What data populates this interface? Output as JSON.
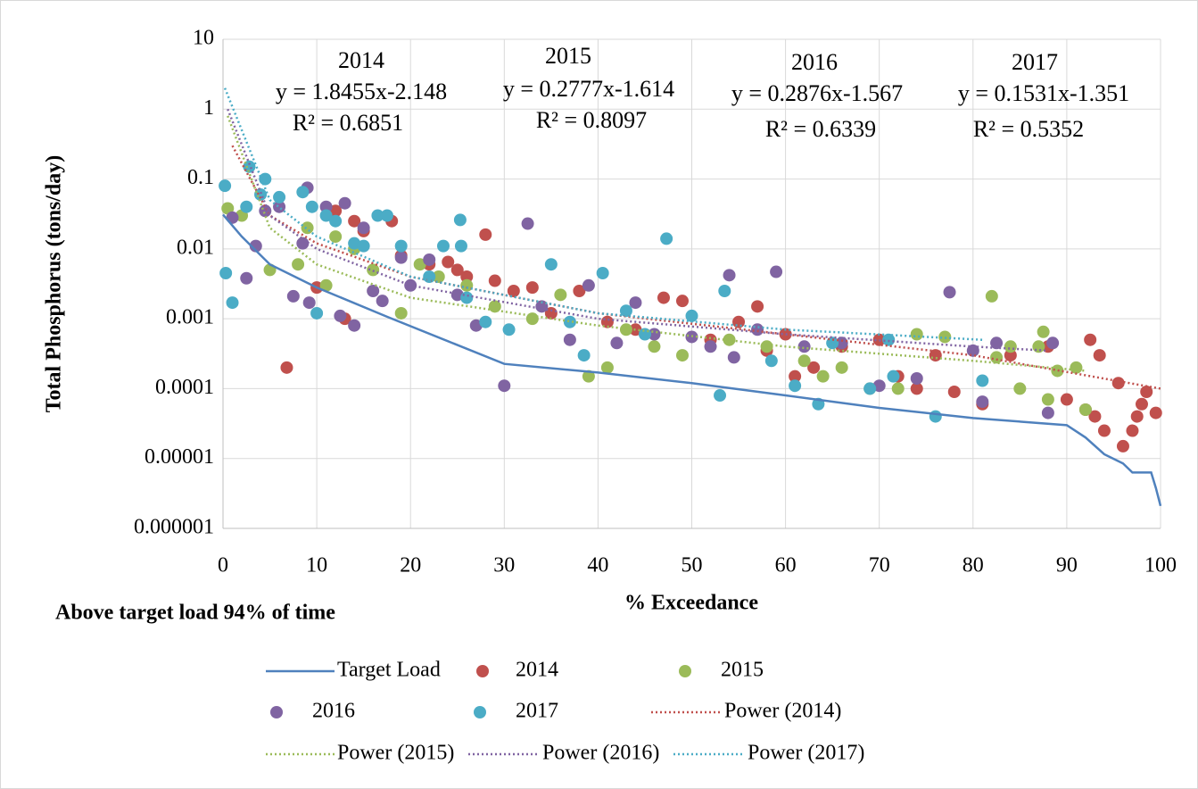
{
  "chart_data": {
    "type": "scatter",
    "log_y": true,
    "grid": true,
    "xlabel": "% Exceedance",
    "ylabel": "Total Phosphorus (tons/day)",
    "xlim": [
      0,
      100
    ],
    "xticks": [
      0,
      10,
      20,
      30,
      40,
      50,
      60,
      70,
      80,
      90,
      100
    ],
    "ylim": [
      1e-06,
      10
    ],
    "yticks": [
      1e-06,
      1e-05,
      0.0001,
      0.001,
      0.01,
      0.1,
      1,
      10
    ],
    "annotations": [
      "2014",
      "y = 1.8455x-2.148",
      "R² = 0.6851",
      "2015",
      "y = 0.2777x-1.614",
      "R² = 0.8097",
      "2016",
      "y = 0.2876x-1.567",
      "R² = 0.6339",
      "2017",
      "y = 0.1531x-1.351",
      "R² = 0.5352",
      "Above target load 94% of time"
    ],
    "series": [
      {
        "name": "Target Load",
        "type": "line",
        "color": "#4f81bd",
        "x": [
          0,
          2,
          5,
          10,
          17.5,
          30,
          40,
          50,
          60,
          70,
          80,
          90,
          92,
          94,
          96,
          97,
          99,
          99.5,
          100
        ],
        "values": [
          0.031,
          0.015,
          0.006,
          0.0028,
          0.00107,
          0.000226,
          0.00017,
          0.00012,
          8e-05,
          5.3e-05,
          3.8e-05,
          3e-05,
          2e-05,
          1.15e-05,
          8.5e-06,
          6.3e-06,
          6.3e-06,
          3.8e-06,
          2.1e-06
        ]
      },
      {
        "name": "2014",
        "type": "scatter",
        "color": "#c0504d",
        "x": [
          6.8,
          10,
          12,
          13,
          14,
          15,
          18,
          19,
          22,
          24,
          25,
          26,
          28,
          29,
          31,
          33,
          35,
          38,
          41,
          44,
          47,
          49,
          52,
          55,
          57,
          58,
          60,
          61,
          63,
          66,
          70,
          72,
          74,
          76,
          78,
          81,
          84,
          88,
          90,
          92,
          92.5,
          93,
          93.5,
          94,
          95.5,
          96,
          97,
          97.5,
          98,
          98.5,
          99.5
        ],
        "values": [
          0.0002,
          0.0028,
          0.035,
          0.001,
          0.025,
          0.018,
          0.025,
          0.008,
          0.006,
          0.0065,
          0.005,
          0.004,
          0.016,
          0.0035,
          0.0025,
          0.0028,
          0.0012,
          0.0025,
          0.0009,
          0.0007,
          0.002,
          0.0018,
          0.0005,
          0.0009,
          0.0015,
          0.00035,
          0.0006,
          0.00015,
          0.0002,
          0.0004,
          0.0005,
          0.00015,
          0.0001,
          0.0003,
          9e-05,
          6e-05,
          0.0003,
          0.0004,
          7e-05,
          5e-05,
          0.0005,
          4e-05,
          0.0003,
          2.5e-05,
          0.00012,
          1.5e-05,
          2.5e-05,
          4e-05,
          6e-05,
          9e-05,
          4.5e-05
        ]
      },
      {
        "name": "2015",
        "type": "scatter",
        "color": "#9bbb59",
        "x": [
          0.5,
          2,
          5,
          8,
          9,
          11,
          12,
          14,
          16,
          19,
          21,
          23,
          26,
          29,
          33,
          36,
          39,
          41,
          43,
          46,
          49,
          54,
          58,
          62,
          64,
          66,
          69,
          72,
          74,
          77,
          82,
          82.5,
          84,
          85,
          87,
          87.5,
          88,
          89,
          91,
          92
        ],
        "values": [
          0.038,
          0.03,
          0.005,
          0.006,
          0.02,
          0.003,
          0.015,
          0.01,
          0.005,
          0.0012,
          0.006,
          0.004,
          0.003,
          0.0015,
          0.001,
          0.0022,
          0.00015,
          0.0002,
          0.0007,
          0.0004,
          0.0003,
          0.0005,
          0.0004,
          0.00025,
          0.00015,
          0.0002,
          0.0001,
          0.0001,
          0.0006,
          0.00055,
          0.0021,
          0.00028,
          0.0004,
          0.0001,
          0.0004,
          0.00065,
          7e-05,
          0.00018,
          0.0002,
          5e-05
        ]
      },
      {
        "name": "2016",
        "type": "scatter",
        "color": "#8064a2",
        "x": [
          1,
          2.5,
          3.5,
          4.5,
          6,
          7.5,
          8.5,
          9,
          9.2,
          11,
          12.5,
          13,
          14,
          15,
          16,
          17,
          19,
          20,
          22,
          25,
          27,
          30,
          32.5,
          34,
          37,
          39,
          42,
          44,
          46,
          50,
          52,
          54,
          54.5,
          57,
          59,
          62,
          66,
          70,
          74,
          77.5,
          80,
          81,
          82.5,
          88,
          88.5
        ],
        "values": [
          0.028,
          0.0038,
          0.011,
          0.035,
          0.04,
          0.0021,
          0.012,
          0.075,
          0.0017,
          0.04,
          0.0011,
          0.045,
          0.0008,
          0.02,
          0.0025,
          0.0018,
          0.0075,
          0.003,
          0.007,
          0.0022,
          0.0008,
          0.00011,
          0.023,
          0.0015,
          0.0005,
          0.003,
          0.00045,
          0.0017,
          0.0006,
          0.00055,
          0.0004,
          0.0042,
          0.00028,
          0.0007,
          0.0047,
          0.0004,
          0.00045,
          0.00011,
          0.00014,
          0.0024,
          0.00035,
          6.5e-05,
          0.00045,
          4.5e-05,
          0.00045
        ]
      },
      {
        "name": "2017",
        "type": "scatter",
        "color": "#4bacc6",
        "x": [
          0.2,
          0.3,
          1,
          2.5,
          2.8,
          4,
          4.5,
          6,
          8.5,
          9.5,
          10,
          11,
          12,
          14,
          15,
          16.5,
          17.5,
          19,
          22,
          23.5,
          25.3,
          25.4,
          26,
          28,
          30.5,
          35,
          37,
          38.5,
          40.5,
          43,
          45,
          47.3,
          50,
          53,
          53.5,
          58.5,
          61,
          63.5,
          65,
          69,
          71,
          71.5,
          76,
          81
        ],
        "values": [
          0.08,
          0.0045,
          0.0017,
          0.04,
          0.15,
          0.06,
          0.1,
          0.055,
          0.065,
          0.04,
          0.0012,
          0.03,
          0.025,
          0.012,
          0.011,
          0.03,
          0.03,
          0.011,
          0.004,
          0.011,
          0.026,
          0.011,
          0.002,
          0.0009,
          0.0007,
          0.006,
          0.0009,
          0.0003,
          0.0045,
          0.0013,
          0.0006,
          0.014,
          0.0011,
          8e-05,
          0.0025,
          0.00025,
          0.00011,
          6e-05,
          0.00045,
          0.0001,
          0.0005,
          0.00015,
          4e-05,
          0.00013
        ]
      },
      {
        "name": "Power (2014)",
        "type": "line",
        "dash": true,
        "color": "#c0504d",
        "x": [
          1,
          5,
          10,
          20,
          40,
          60,
          80,
          100
        ],
        "values": [
          0.3,
          0.03,
          0.012,
          0.004,
          0.0012,
          0.0006,
          0.0003,
          0.0001
        ]
      },
      {
        "name": "Power (2015)",
        "type": "line",
        "dash": true,
        "color": "#9bbb59",
        "x": [
          0.5,
          5,
          10,
          20,
          40,
          60,
          80,
          92
        ],
        "values": [
          0.8,
          0.02,
          0.006,
          0.002,
          0.0008,
          0.0004,
          0.00025,
          0.00018
        ]
      },
      {
        "name": "Power (2016)",
        "type": "line",
        "dash": true,
        "color": "#8064a2",
        "x": [
          0.5,
          5,
          10,
          20,
          40,
          60,
          80,
          88
        ],
        "values": [
          1,
          0.03,
          0.01,
          0.003,
          0.001,
          0.0006,
          0.0004,
          0.00035
        ]
      },
      {
        "name": "Power (2017)",
        "type": "line",
        "dash": true,
        "color": "#4bacc6",
        "x": [
          0.2,
          5,
          10,
          20,
          40,
          60,
          81
        ],
        "values": [
          2,
          0.05,
          0.015,
          0.004,
          0.0012,
          0.0007,
          0.0005
        ]
      }
    ]
  }
}
